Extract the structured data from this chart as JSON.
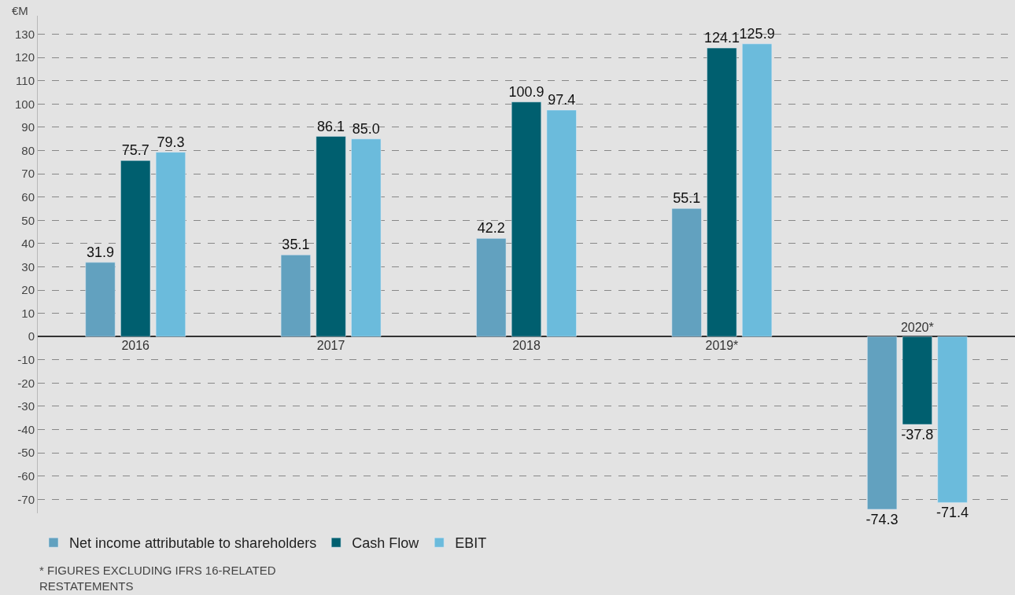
{
  "chart_data": {
    "type": "bar",
    "ylabel": "€M",
    "categories": [
      "2016",
      "2017",
      "2018",
      "2019*",
      "2020*"
    ],
    "series": [
      {
        "name": "Net income attributable to shareholders",
        "color": "#62a1bf",
        "values": [
          31.9,
          35.1,
          42.2,
          55.1,
          -74.3
        ],
        "value_labels": [
          "31.9",
          "35.1",
          "42.2",
          "55.1",
          "-74.3"
        ]
      },
      {
        "name": "Cash Flow",
        "color": "#005f6f",
        "values": [
          75.7,
          86.1,
          100.9,
          124.1,
          -37.8
        ],
        "value_labels": [
          "75.7",
          "86.1",
          "100.9",
          "124.1",
          "-37.8"
        ]
      },
      {
        "name": "EBIT",
        "color": "#6bbbdc",
        "values": [
          79.3,
          85.0,
          97.4,
          125.9,
          -71.4
        ],
        "value_labels": [
          "79.3",
          "85.0",
          "97.4",
          "125.9",
          "-71.4"
        ]
      }
    ],
    "ylim": [
      -76,
      138
    ],
    "yticks": [
      -70,
      -60,
      -50,
      -40,
      -30,
      -20,
      -10,
      0,
      10,
      20,
      30,
      40,
      50,
      60,
      70,
      80,
      90,
      100,
      110,
      120,
      130
    ],
    "grid": "y",
    "legend": "bottom left",
    "annotations": [
      "* FIGURES EXCLUDING IFRS 16-RELATED\nRESTATEMENTS"
    ]
  }
}
